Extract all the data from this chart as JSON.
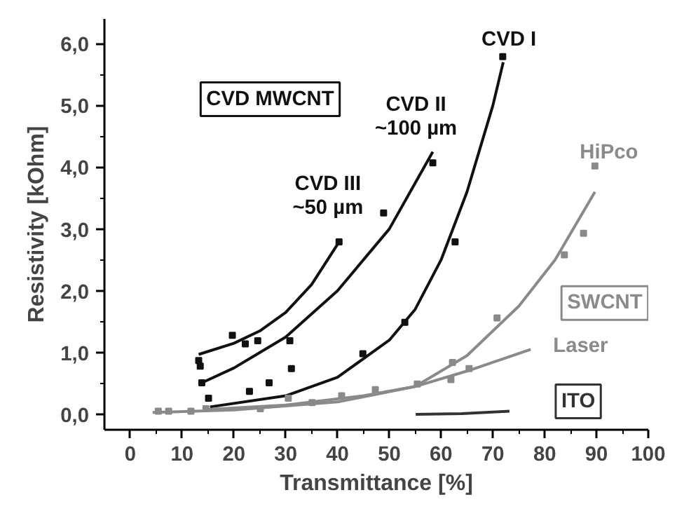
{
  "chart_data": {
    "type": "line",
    "xlabel": "Transmittance [%]",
    "ylabel": "Resistivity [kOhm]",
    "xlim": [
      -5,
      100
    ],
    "ylim": [
      -0.25,
      6.4
    ],
    "xticks": [
      0,
      10,
      20,
      30,
      40,
      50,
      60,
      70,
      80,
      90,
      100
    ],
    "yticks": [
      {
        "value": 0,
        "label": "0,0"
      },
      {
        "value": 1,
        "label": "1,0"
      },
      {
        "value": 2,
        "label": "2,0"
      },
      {
        "value": 3,
        "label": "3,0"
      },
      {
        "value": 4,
        "label": "4,0"
      },
      {
        "value": 5,
        "label": "5,0"
      },
      {
        "value": 6,
        "label": "6,0"
      }
    ],
    "grid": false,
    "line_style": "solid",
    "series": [
      {
        "name": "CVD I",
        "marker": "none",
        "color": "#111111",
        "x": [
          15.4,
          30,
          40,
          50,
          55,
          60,
          65,
          70,
          72
        ],
        "values": [
          0.12,
          0.3,
          0.6,
          1.2,
          1.7,
          2.5,
          3.6,
          5.0,
          5.7
        ]
      },
      {
        "type": "scatter",
        "marker": "square",
        "color": "#111111",
        "x": [
          15.1,
          23,
          26.8,
          31.1,
          44.9,
          53,
          62.7,
          71.9
        ],
        "values": [
          0.26,
          0.37,
          0.51,
          0.74,
          0.98,
          1.49,
          2.79,
          5.79
        ]
      },
      {
        "name": "CVD II\n~100 µm",
        "marker": "none",
        "color": "#111111",
        "x": [
          13.8,
          20,
          30,
          40,
          50,
          58.4
        ],
        "values": [
          0.51,
          0.75,
          1.25,
          2.0,
          3.0,
          4.25
        ]
      },
      {
        "type": "scatter",
        "marker": "square",
        "color": "#111111",
        "x": [
          13.8,
          30.8,
          48.9,
          58.4
        ],
        "values": [
          0.51,
          1.19,
          3.26,
          4.07
        ]
      },
      {
        "name": "CVD III\n~50 µm",
        "marker": "none",
        "color": "#111111",
        "x": [
          13.2,
          20,
          25,
          30,
          35,
          40.3
        ],
        "values": [
          0.97,
          1.15,
          1.35,
          1.65,
          2.1,
          2.79
        ]
      },
      {
        "type": "scatter",
        "marker": "square",
        "color": "#111111",
        "x": [
          13.2,
          13.5,
          19.7,
          22.2,
          24.6,
          40.3
        ],
        "values": [
          0.87,
          0.78,
          1.28,
          1.14,
          1.19,
          2.79
        ]
      },
      {
        "name": "HiPco",
        "marker": "none",
        "color": "#8a8a8a",
        "x": [
          4.3,
          20,
          40,
          55,
          65,
          75,
          82,
          89.7
        ],
        "values": [
          0.03,
          0.07,
          0.2,
          0.45,
          0.95,
          1.75,
          2.5,
          3.6
        ]
      },
      {
        "type": "scatter",
        "marker": "square",
        "color": "#8a8a8a",
        "x": [
          5.4,
          11.7,
          25.1,
          40.8,
          55.4,
          62.2,
          70.8,
          83.8,
          87.5,
          89.7
        ],
        "values": [
          0.05,
          0.05,
          0.09,
          0.3,
          0.49,
          0.84,
          1.56,
          2.58,
          2.93,
          4.02
        ]
      },
      {
        "name": "Laser",
        "marker": "none",
        "color": "#8a8a8a",
        "x": [
          15,
          30,
          45,
          55,
          65,
          77.3
        ],
        "values": [
          0.08,
          0.15,
          0.3,
          0.45,
          0.7,
          1.05
        ]
      },
      {
        "type": "scatter",
        "marker": "square",
        "color": "#8a8a8a",
        "x": [
          7.4,
          14.6,
          30.5,
          35.1,
          47.3,
          61.9,
          65.4
        ],
        "values": [
          0.05,
          0.09,
          0.26,
          0.19,
          0.4,
          0.56,
          0.74
        ]
      },
      {
        "name": "ITO",
        "marker": "none",
        "color": "#333333",
        "x": [
          55.1,
          64,
          73.2
        ],
        "values": [
          0.0,
          0.01,
          0.05
        ]
      }
    ],
    "annotations": [
      "CVD MWCNT",
      "SWCNT"
    ]
  }
}
